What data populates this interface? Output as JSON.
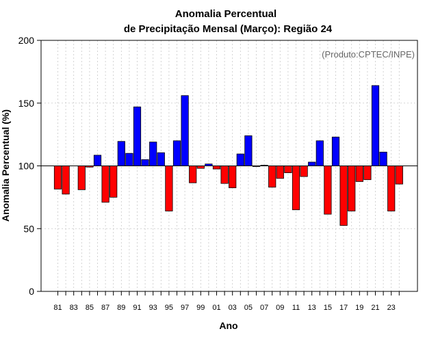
{
  "chart_data": {
    "type": "bar",
    "title": "Anomalia Percentual",
    "subtitle": "de Precipitação Mensal (Março): Região 24",
    "xlabel": "Ano",
    "ylabel": "Anomalia Percentual (%)",
    "annotation": "(Produto:CPTEC/INPE)",
    "baseline": 100,
    "ylim": [
      0,
      200
    ],
    "yticks": [
      "0",
      "50",
      "100",
      "150",
      "200"
    ],
    "grid": true,
    "categories": [
      "81",
      "82",
      "83",
      "84",
      "85",
      "86",
      "87",
      "88",
      "89",
      "90",
      "91",
      "92",
      "93",
      "94",
      "95",
      "96",
      "97",
      "98",
      "99",
      "00",
      "01",
      "02",
      "03",
      "04",
      "05",
      "06",
      "07",
      "08",
      "09",
      "10",
      "11",
      "12",
      "13",
      "14",
      "15",
      "16",
      "17",
      "18",
      "19",
      "20",
      "21",
      "22",
      "23",
      "24"
    ],
    "xtick_labels": [
      "81",
      "83",
      "85",
      "87",
      "89",
      "91",
      "93",
      "95",
      "97",
      "99",
      "01",
      "03",
      "05",
      "07",
      "09",
      "11",
      "13",
      "15",
      "17",
      "19",
      "21",
      "23"
    ],
    "values": [
      81.5,
      77.5,
      100,
      81,
      99,
      108.5,
      71,
      75,
      119.5,
      110,
      147,
      105,
      119,
      110.5,
      64,
      120,
      156,
      86.5,
      98,
      101.5,
      97.5,
      86,
      82.5,
      109.5,
      124,
      99.5,
      100.5,
      83,
      90,
      94.5,
      65,
      91.5,
      103,
      120,
      61.5,
      123,
      52.5,
      64,
      87.5,
      89,
      164,
      111,
      64,
      85.5
    ],
    "colors": {
      "positive": "#0000ff",
      "negative": "#ff0000",
      "baseline": "#000000",
      "grid": "#c8c8c8"
    }
  }
}
